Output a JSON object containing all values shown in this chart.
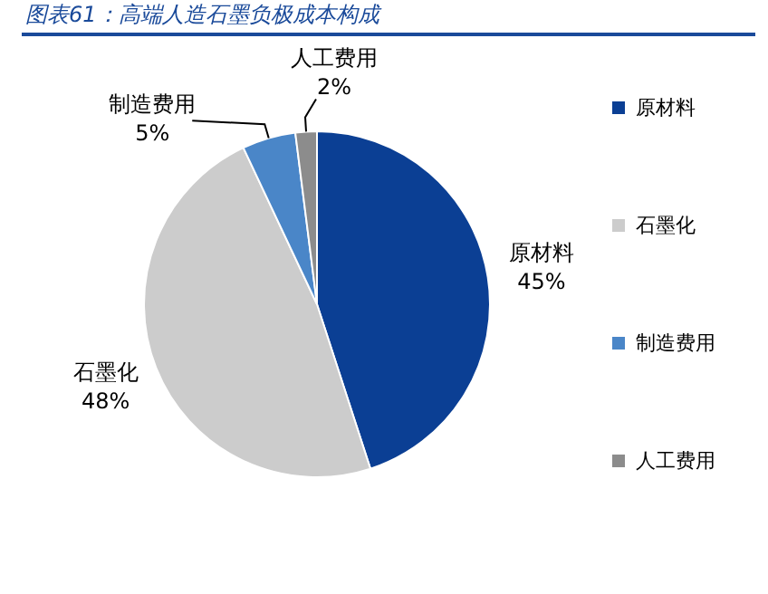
{
  "chart_data": {
    "type": "pie",
    "title": "图表61：高端人造石墨负极成本构成",
    "categories": [
      "原材料",
      "石墨化",
      "制造费用",
      "人工费用"
    ],
    "values": [
      45,
      48,
      5,
      2
    ],
    "colors": [
      "#0b3f94",
      "#cccccc",
      "#4a86c8",
      "#8c8c8c"
    ],
    "value_labels": [
      "45%",
      "48%",
      "5%",
      "2%"
    ],
    "legend": "right"
  }
}
